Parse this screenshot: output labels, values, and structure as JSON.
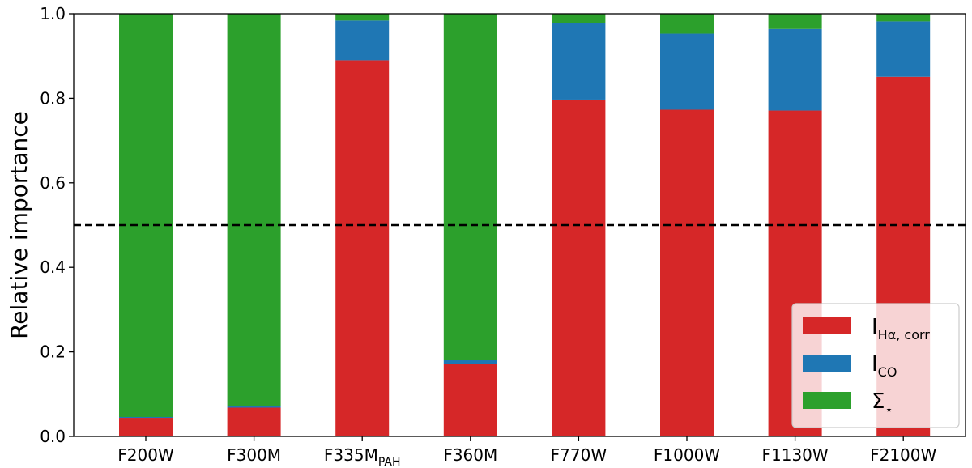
{
  "chart_data": {
    "type": "bar",
    "stacked": true,
    "categories": [
      {
        "main": "F200W",
        "sub": ""
      },
      {
        "main": "F300M",
        "sub": ""
      },
      {
        "main": "F335M",
        "sub": "PAH"
      },
      {
        "main": "F360M",
        "sub": ""
      },
      {
        "main": "F770W",
        "sub": ""
      },
      {
        "main": "F1000W",
        "sub": ""
      },
      {
        "main": "F1130W",
        "sub": ""
      },
      {
        "main": "F2100W",
        "sub": ""
      }
    ],
    "series": [
      {
        "name": "I_Hα,corr",
        "label_main": "I",
        "label_sub": "Hα, corr",
        "color": "#d62728",
        "values": [
          0.044,
          0.068,
          0.89,
          0.172,
          0.797,
          0.773,
          0.771,
          0.851
        ]
      },
      {
        "name": "I_CO",
        "label_main": "I",
        "label_sub": "CO",
        "color": "#1f77b4",
        "values": [
          0.002,
          0.003,
          0.094,
          0.01,
          0.181,
          0.18,
          0.193,
          0.131
        ]
      },
      {
        "name": "Σ_⋆",
        "label_main": "Σ",
        "label_sub": "⋆",
        "color": "#2ca02c",
        "values": [
          0.954,
          0.929,
          0.016,
          0.818,
          0.022,
          0.047,
          0.036,
          0.018
        ]
      }
    ],
    "ylabel": "Relative importance",
    "xlabel": "",
    "ylim": [
      0,
      1.0
    ],
    "yticks": [
      "0.0",
      "0.2",
      "0.4",
      "0.6",
      "0.8",
      "1.0"
    ],
    "reference_line": {
      "y": 0.5,
      "style": "dashed",
      "color": "#000000"
    },
    "grid": false,
    "legend_position": "bottom-right"
  }
}
